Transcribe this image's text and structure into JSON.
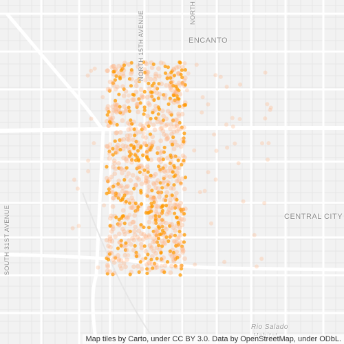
{
  "map": {
    "place_labels": {
      "encanto": "ENCANTO",
      "central_city": "CENTRAL CITY"
    },
    "street_labels": {
      "north_15th_avenue": "NORTH 15TH AVENUE",
      "north_top": "NORTH",
      "south_31st_avenue": "SOUTH 31ST AVENUE"
    },
    "water_labels": {
      "rio_salado": "Rio Salado",
      "habitat": "Habitat"
    },
    "attribution": "Map tiles by Carto, under CC BY 3.0. Data by OpenStreetMap, under ODbL.",
    "colors": {
      "background": "#f2f2f2",
      "road_major": "#ffffff",
      "road_minor": "#e6e6e6",
      "label": "#8a8a8a",
      "density_low": "#ffb380",
      "density_high": "#ff9a00"
    }
  }
}
